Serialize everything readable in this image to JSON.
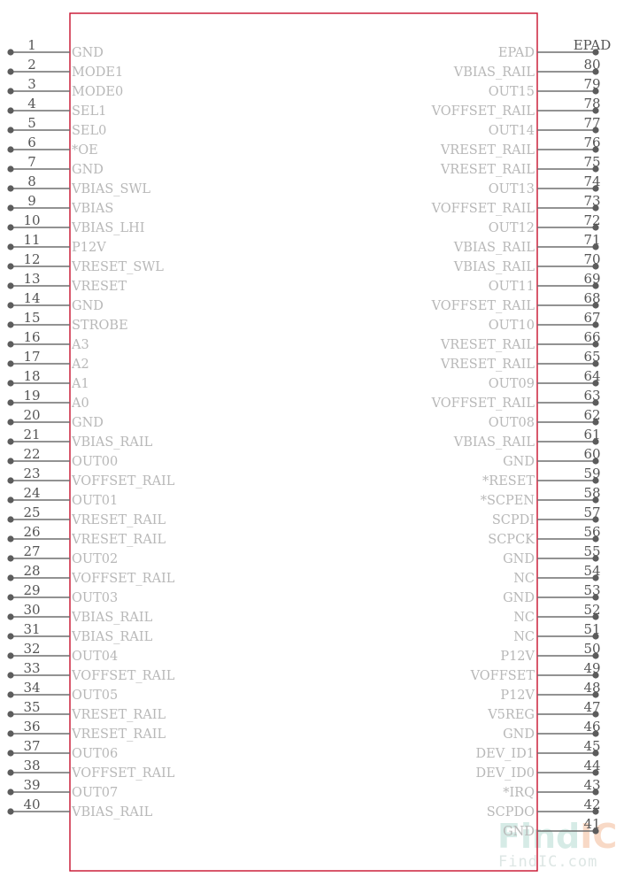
{
  "colors": {
    "body_outline": "#c8102e",
    "pin_line": "#6e6e6e",
    "pin_dot": "#5c5c5c",
    "pin_number": "#555555",
    "pin_name": "#b8b8b8",
    "watermark_primary": "#d6ebe6",
    "watermark_accent": "#f8d9c6",
    "watermark_text": "#dde6e4"
  },
  "left_pins": [
    {
      "num": "1",
      "name": "GND"
    },
    {
      "num": "2",
      "name": "MODE1"
    },
    {
      "num": "3",
      "name": "MODE0"
    },
    {
      "num": "4",
      "name": "SEL1"
    },
    {
      "num": "5",
      "name": "SEL0"
    },
    {
      "num": "6",
      "name": "*OE"
    },
    {
      "num": "7",
      "name": "GND"
    },
    {
      "num": "8",
      "name": "VBIAS_SWL"
    },
    {
      "num": "9",
      "name": "VBIAS"
    },
    {
      "num": "10",
      "name": "VBIAS_LHI"
    },
    {
      "num": "11",
      "name": "P12V"
    },
    {
      "num": "12",
      "name": "VRESET_SWL"
    },
    {
      "num": "13",
      "name": "VRESET"
    },
    {
      "num": "14",
      "name": "GND"
    },
    {
      "num": "15",
      "name": "STROBE"
    },
    {
      "num": "16",
      "name": "A3"
    },
    {
      "num": "17",
      "name": "A2"
    },
    {
      "num": "18",
      "name": "A1"
    },
    {
      "num": "19",
      "name": "A0"
    },
    {
      "num": "20",
      "name": "GND"
    },
    {
      "num": "21",
      "name": "VBIAS_RAIL"
    },
    {
      "num": "22",
      "name": "OUT00"
    },
    {
      "num": "23",
      "name": "VOFFSET_RAIL"
    },
    {
      "num": "24",
      "name": "OUT01"
    },
    {
      "num": "25",
      "name": "VRESET_RAIL"
    },
    {
      "num": "26",
      "name": "VRESET_RAIL"
    },
    {
      "num": "27",
      "name": "OUT02"
    },
    {
      "num": "28",
      "name": "VOFFSET_RAIL"
    },
    {
      "num": "29",
      "name": "OUT03"
    },
    {
      "num": "30",
      "name": "VBIAS_RAIL"
    },
    {
      "num": "31",
      "name": "VBIAS_RAIL"
    },
    {
      "num": "32",
      "name": "OUT04"
    },
    {
      "num": "33",
      "name": "VOFFSET_RAIL"
    },
    {
      "num": "34",
      "name": "OUT05"
    },
    {
      "num": "35",
      "name": "VRESET_RAIL"
    },
    {
      "num": "36",
      "name": "VRESET_RAIL"
    },
    {
      "num": "37",
      "name": "OUT06"
    },
    {
      "num": "38",
      "name": "VOFFSET_RAIL"
    },
    {
      "num": "39",
      "name": "OUT07"
    },
    {
      "num": "40",
      "name": "VBIAS_RAIL"
    }
  ],
  "right_pins": [
    {
      "num": "EPAD",
      "name": "EPAD"
    },
    {
      "num": "80",
      "name": "VBIAS_RAIL"
    },
    {
      "num": "79",
      "name": "OUT15"
    },
    {
      "num": "78",
      "name": "VOFFSET_RAIL"
    },
    {
      "num": "77",
      "name": "OUT14"
    },
    {
      "num": "76",
      "name": "VRESET_RAIL"
    },
    {
      "num": "75",
      "name": "VRESET_RAIL"
    },
    {
      "num": "74",
      "name": "OUT13"
    },
    {
      "num": "73",
      "name": "VOFFSET_RAIL"
    },
    {
      "num": "72",
      "name": "OUT12"
    },
    {
      "num": "71",
      "name": "VBIAS_RAIL"
    },
    {
      "num": "70",
      "name": "VBIAS_RAIL"
    },
    {
      "num": "69",
      "name": "OUT11"
    },
    {
      "num": "68",
      "name": "VOFFSET_RAIL"
    },
    {
      "num": "67",
      "name": "OUT10"
    },
    {
      "num": "66",
      "name": "VRESET_RAIL"
    },
    {
      "num": "65",
      "name": "VRESET_RAIL"
    },
    {
      "num": "64",
      "name": "OUT09"
    },
    {
      "num": "63",
      "name": "VOFFSET_RAIL"
    },
    {
      "num": "62",
      "name": "OUT08"
    },
    {
      "num": "61",
      "name": "VBIAS_RAIL"
    },
    {
      "num": "60",
      "name": "GND"
    },
    {
      "num": "59",
      "name": "*RESET"
    },
    {
      "num": "58",
      "name": "*SCPEN"
    },
    {
      "num": "57",
      "name": "SCPDI"
    },
    {
      "num": "56",
      "name": "SCPCK"
    },
    {
      "num": "55",
      "name": "GND"
    },
    {
      "num": "54",
      "name": "NC"
    },
    {
      "num": "53",
      "name": "GND"
    },
    {
      "num": "52",
      "name": "NC"
    },
    {
      "num": "51",
      "name": "NC"
    },
    {
      "num": "50",
      "name": "P12V"
    },
    {
      "num": "49",
      "name": "VOFFSET"
    },
    {
      "num": "48",
      "name": "P12V"
    },
    {
      "num": "47",
      "name": "V5REG"
    },
    {
      "num": "46",
      "name": "GND"
    },
    {
      "num": "45",
      "name": "DEV_ID1"
    },
    {
      "num": "44",
      "name": "DEV_ID0"
    },
    {
      "num": "43",
      "name": "*IRQ"
    },
    {
      "num": "42",
      "name": "SCPDO"
    },
    {
      "num": "41",
      "name": "GND"
    }
  ],
  "watermark": {
    "logo_primary": "Find",
    "logo_accent": "IC",
    "url": "FindIC.com"
  }
}
